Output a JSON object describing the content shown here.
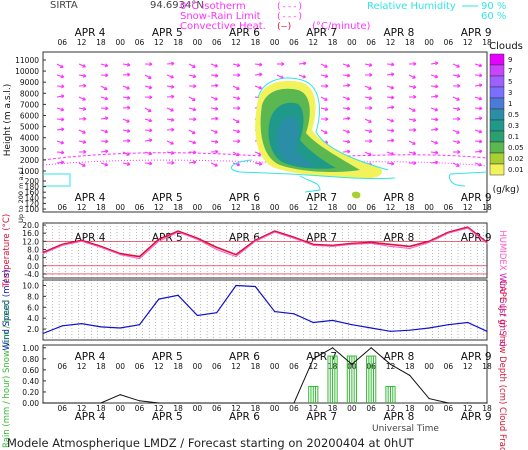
{
  "header": {
    "site": "SIRTA",
    "coords": "94.6934°N",
    "legend_isotherm": "0°C isotherm",
    "legend_snow_rain": "Snow-Rain Limit",
    "legend_convective": "Convective Heat.",
    "legend_units": "(°C/minute)",
    "legend_rh_label": "Relative Humidity",
    "rh_90": "90 %",
    "rh_60": "60 %",
    "line_isotherm": "(---)",
    "line_snow": "(---)",
    "line_conv": "(—)"
  },
  "colors": {
    "magenta": "#ff33ff",
    "cyan": "#33e5e5",
    "temperature": "#dd1133",
    "humidex": "#ff55cc",
    "wind_speed": "#1111cc",
    "wind_gust": "#cc22cc",
    "rain": "#111111",
    "snow": "#33bb33"
  },
  "date_labels": [
    "APR 4",
    "APR 5",
    "APR 6",
    "APR 7",
    "APR 8",
    "APR 9"
  ],
  "hour_labels": [
    "06",
    "12",
    "18",
    "00",
    "06",
    "12",
    "18",
    "00",
    "06",
    "12",
    "18",
    "00",
    "06",
    "12",
    "18",
    "00",
    "06",
    "12",
    "18",
    "00",
    "06",
    "12",
    "18"
  ],
  "footer": {
    "universal_time": "Universal Time",
    "title": "Modele Atmospherique LMDZ / Forecast starting on 20200404 at 0hUT"
  },
  "clouds_legend": {
    "title": "Clouds",
    "unit": "(g/kg)",
    "levels": [
      "9",
      "7",
      "5",
      "3",
      "1",
      "0.5",
      "0.3",
      "0.1",
      "0.05",
      "0.02",
      "0.01"
    ],
    "colors": [
      "#e600ff",
      "#c844ff",
      "#a060ff",
      "#7a6fff",
      "#4a7bd8",
      "#2a8fa6",
      "#1f9a8a",
      "#2aa070",
      "#5bb850",
      "#a8d030",
      "#f2f25a"
    ]
  },
  "chart_data": [
    {
      "type": "heatmap",
      "title": "",
      "ylabel": "Height (m a.s.l.)",
      "ylabel2": "Up to 200 m a.s.l.",
      "y_ticks": [
        "11000",
        "10000",
        "9000",
        "8000",
        "7000",
        "6000",
        "5000",
        "4000",
        "3000",
        "2000",
        "1000",
        "200",
        "180",
        "160",
        "140",
        "120",
        "100"
      ],
      "y_ticks_low": [
        "200",
        "180",
        "160",
        "140",
        "120",
        "100"
      ],
      "x_range_hours": [
        0,
        138
      ]
    },
    {
      "type": "line",
      "ylabel": "Temperature (°C)",
      "ylabel2": "HUMIDEX",
      "y_ticks": [
        "20.0",
        "16.0",
        "12.0",
        "8.0",
        "4.0",
        "0.0",
        "-4.0"
      ],
      "ylim": [
        -6,
        21
      ],
      "x": [
        0,
        6,
        12,
        18,
        24,
        30,
        36,
        42,
        48,
        54,
        60,
        66,
        72,
        78,
        84,
        90,
        96,
        102,
        108,
        114,
        120,
        126,
        132,
        138
      ],
      "series": [
        {
          "name": "Temperature",
          "values": [
            6.5,
            10.5,
            12.5,
            9.5,
            6.0,
            4.5,
            13.0,
            17.0,
            13.5,
            9.0,
            5.5,
            12.5,
            17.0,
            14.0,
            10.5,
            10.0,
            11.0,
            11.5,
            10.5,
            9.5,
            12.0,
            16.5,
            19.0,
            11.5
          ]
        },
        {
          "name": "HUMIDEX",
          "values": [
            6.0,
            10.0,
            12.0,
            9.0,
            5.5,
            3.5,
            12.0,
            16.5,
            13.0,
            8.0,
            4.5,
            12.0,
            16.5,
            13.5,
            10.0,
            9.5,
            10.5,
            11.0,
            9.5,
            8.5,
            11.5,
            16.0,
            18.5,
            11.0
          ]
        }
      ]
    },
    {
      "type": "line",
      "ylabel": "Wind Speed (m / s)",
      "ylabel2": "Wind Gust (m / s)",
      "y_ticks": [
        "10.0",
        "8.0",
        "6.0",
        "4.0",
        "2.0"
      ],
      "ylim": [
        0,
        11
      ],
      "x": [
        0,
        6,
        12,
        18,
        24,
        30,
        36,
        42,
        48,
        54,
        60,
        66,
        72,
        78,
        84,
        90,
        96,
        102,
        108,
        114,
        120,
        126,
        132,
        138
      ],
      "series": [
        {
          "name": "Wind Speed",
          "values": [
            1.2,
            2.6,
            3.0,
            2.4,
            2.2,
            2.8,
            7.5,
            8.2,
            4.5,
            5.0,
            10.0,
            9.8,
            5.2,
            4.8,
            3.2,
            3.6,
            2.8,
            2.2,
            1.6,
            1.8,
            2.2,
            2.8,
            3.2,
            1.6
          ]
        }
      ]
    },
    {
      "type": "line",
      "ylabel": "Rain (mm / hour) Snow (cm / hour)",
      "ylabel2": "CAPE (J / g) Snow Depth (cm) Cloud Fraction",
      "y_ticks": [
        "1.00",
        "0.80",
        "0.60",
        "0.40",
        "0.20",
        "0.00"
      ],
      "ylim": [
        0,
        1.05
      ],
      "x": [
        0,
        6,
        12,
        18,
        24,
        30,
        36,
        42,
        48,
        54,
        60,
        66,
        72,
        78,
        84,
        90,
        96,
        102,
        108,
        114,
        120,
        126,
        132,
        138
      ],
      "series": [
        {
          "name": "Rain",
          "values": [
            0.0,
            0.0,
            0.0,
            0.0,
            0.15,
            0.04,
            0.0,
            0.0,
            0.0,
            0.0,
            0.0,
            0.0,
            0.0,
            0.0,
            0.8,
            1.0,
            0.7,
            1.0,
            0.7,
            0.5,
            0.08,
            0.0,
            0.0,
            0.0
          ]
        },
        {
          "name": "Snow",
          "values": [
            0.0,
            0.0,
            0.0,
            0.0,
            0.0,
            0.0,
            0.0,
            0.0,
            0.0,
            0.0,
            0.0,
            0.0,
            0.0,
            0.0,
            0.3,
            0.85,
            0.85,
            0.85,
            0.3,
            0.0,
            0.0,
            0.0,
            0.0,
            0.0
          ]
        }
      ]
    }
  ]
}
